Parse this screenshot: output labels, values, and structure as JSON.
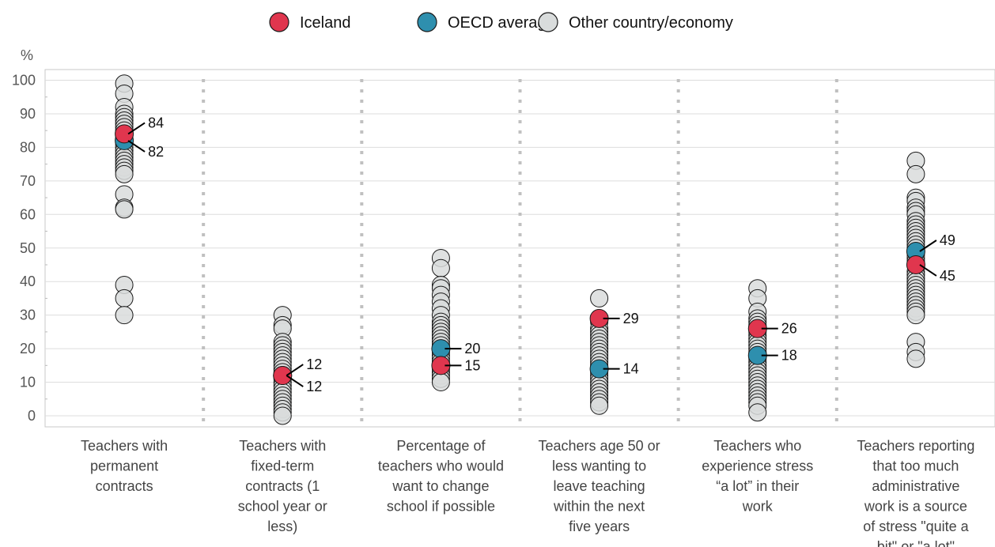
{
  "chart_data": {
    "type": "scatter",
    "ylabel": "%",
    "ylim": [
      0,
      100
    ],
    "yticks": [
      0,
      10,
      20,
      30,
      40,
      50,
      60,
      70,
      80,
      90,
      100
    ],
    "grid": true,
    "legend_position": "top-center",
    "categories": [
      [
        "Teachers with",
        "permanent",
        "contracts"
      ],
      [
        "Teachers with",
        "fixed-term",
        "contracts (1",
        "school year or",
        "less)"
      ],
      [
        "Percentage of",
        "teachers who would",
        "want to change",
        "school if possible"
      ],
      [
        "Teachers age 50 or",
        "less wanting to",
        "leave teaching",
        "within the next",
        "five years"
      ],
      [
        "Teachers who",
        "experience stress",
        "“a lot” in their",
        "work"
      ],
      [
        "Teachers reporting",
        "that too much",
        "administrative",
        "work is a source",
        "of stress \"quite a",
        "bit\" or \"a lot\""
      ]
    ],
    "series": [
      {
        "name": "Other country/economy",
        "color": "#d9dcdc",
        "values": [
          [
            99,
            96,
            92,
            90,
            89,
            88,
            87,
            86,
            85,
            84,
            83,
            82,
            81,
            80,
            79,
            78,
            77,
            76,
            75,
            74,
            73,
            72,
            66,
            62,
            61.5,
            39,
            35,
            30
          ],
          [
            30,
            27,
            26,
            22,
            21,
            20,
            19,
            18,
            17,
            16,
            15,
            14,
            13,
            12,
            11,
            10,
            9,
            8,
            7,
            6,
            5,
            4,
            3,
            2,
            1,
            0
          ],
          [
            47,
            44,
            39,
            38,
            36,
            34,
            32,
            30,
            28,
            27,
            26,
            25,
            24,
            23,
            22,
            21,
            19,
            18,
            17,
            16,
            14,
            13,
            12,
            11,
            10
          ],
          [
            35,
            28,
            26,
            25,
            24,
            23,
            22,
            21,
            20,
            19,
            18,
            17,
            16,
            15,
            13,
            12,
            11,
            10,
            9,
            8,
            7,
            6,
            5,
            4,
            3
          ],
          [
            38,
            35,
            31,
            29,
            28,
            27,
            25,
            24,
            23,
            22,
            21,
            20,
            19,
            17,
            16,
            15,
            14,
            13,
            12,
            11,
            10,
            9,
            8,
            7,
            6,
            5,
            4,
            3,
            1
          ],
          [
            76,
            72,
            65,
            64,
            62,
            61,
            60,
            58,
            57,
            56,
            55,
            54,
            53,
            52,
            51,
            50,
            48,
            47,
            46,
            43,
            42,
            41,
            40,
            39,
            38,
            37,
            36,
            35,
            34,
            33,
            32,
            31,
            30,
            22,
            19,
            17
          ]
        ]
      },
      {
        "name": "OECD average",
        "color": "#2e8fae",
        "values": [
          82,
          12,
          20,
          14,
          18,
          49
        ],
        "labels": [
          "82",
          "12",
          "20",
          "14",
          "18",
          "49"
        ]
      },
      {
        "name": "Iceland",
        "color": "#e0364e",
        "values": [
          84,
          12,
          15,
          29,
          26,
          45
        ],
        "labels": [
          "84",
          "12",
          "15",
          "29",
          "26",
          "45"
        ]
      }
    ],
    "legend": [
      {
        "name": "Iceland",
        "color": "#e0364e"
      },
      {
        "name": "OECD average",
        "color": "#2e8fae"
      },
      {
        "name": "Other country/economy",
        "color": "#d9dcdc"
      }
    ]
  }
}
